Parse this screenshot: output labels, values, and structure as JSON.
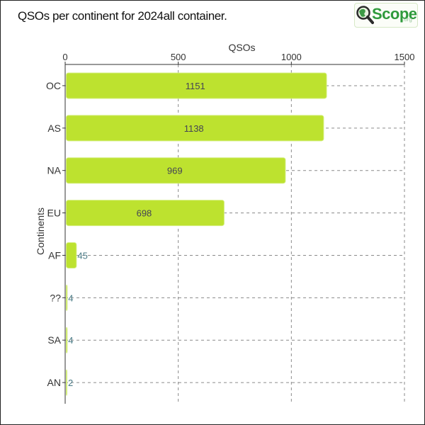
{
  "page": {
    "title": "QSOs per continent for 2024all container.",
    "logo_text": "Scope",
    "logo_suffix": ".org"
  },
  "chart_data": {
    "type": "bar",
    "orientation": "horizontal",
    "title": "QSOs per continent for 2024all container.",
    "xlabel": "QSOs",
    "ylabel": "Continents",
    "xlim": [
      0,
      1500
    ],
    "xticks": [
      0,
      500,
      1000,
      1500
    ],
    "x_axis_position": "top",
    "grid": true,
    "categories": [
      "OC",
      "AS",
      "NA",
      "EU",
      "AF",
      "??",
      "SA",
      "AN"
    ],
    "values": [
      1151,
      1138,
      969,
      698,
      45,
      4,
      4,
      2
    ],
    "bar_color": "#bde22f",
    "bar_edge_color": "#d4ee7e"
  }
}
